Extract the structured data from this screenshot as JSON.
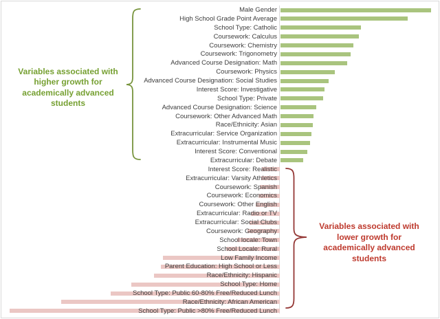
{
  "chart_data": {
    "type": "bar",
    "orientation": "horizontal",
    "title": "",
    "axis_labels_shown": false,
    "value_unit": "relative effect size (no numeric axis displayed; values are bar lengths in screen pixels, positive = rightward green bar, negative = leftward pink bar)",
    "positive_color": "#a9c47e",
    "negative_color": "#ebc7c4",
    "label_color": "#3c3c3c",
    "axis_line_color": "#d9d9d9",
    "categories": [
      "Male Gender",
      "High School Grade Point Average",
      "School Type: Catholic",
      "Coursework: Calculus",
      "Coursework: Chemistry",
      "Coursework: Trigonometry",
      "Advanced Course Designation: Math",
      "Coursework: Physics",
      "Advanced Course Designation: Social Studies",
      "Interest Score: Investigative",
      "School Type: Private",
      "Advanced Course Designation: Science",
      "Coursework: Other Advanced Math",
      "Race/Ethnicity: Asian",
      "Extracurricular: Service Organization",
      "Extracurricular: Instrumental Music",
      "Interest Score: Conventional",
      "Extracurricular: Debate",
      "Interest Score: Realistic",
      "Extracurricular: Varsity Athletics",
      "Coursework: Spanish",
      "Coursework: Economics",
      "Coursework: Other English",
      "Extracurricular: Radio or TV",
      "Extracurricular: Social Clubs",
      "Coursework: Geography",
      "School locale: Town",
      "School Locale: Rural",
      "Low Family Income",
      "Parent Education: High School or Less",
      "Race/Ethnicity: Hispanic",
      "School Type: Home",
      "School Type: Public 60-80% Free/Reduced Lunch",
      "Race/Ethnicity: African American",
      "School Type: Public >80% Free/Reduced Lunch"
    ],
    "values": [
      219,
      185,
      117,
      114,
      106,
      102,
      97,
      79,
      70,
      64,
      62,
      52,
      48,
      47,
      45,
      43,
      39,
      33,
      -26,
      -27,
      -29,
      -31,
      -35,
      -42,
      -44,
      -47,
      -62,
      -78,
      -170,
      -173,
      -183,
      -216,
      -246,
      -318,
      -393
    ]
  },
  "annotations": {
    "higher": {
      "lines": [
        "Variables associated with",
        "higher growth for",
        "academically advanced",
        "students"
      ],
      "text_color": "#76a032",
      "brace_color": "#77943c"
    },
    "lower": {
      "lines": [
        "Variables associated with",
        "lower growth for",
        "academically advanced",
        "students"
      ],
      "text_color": "#be3a2e",
      "brace_color": "#943735"
    }
  }
}
